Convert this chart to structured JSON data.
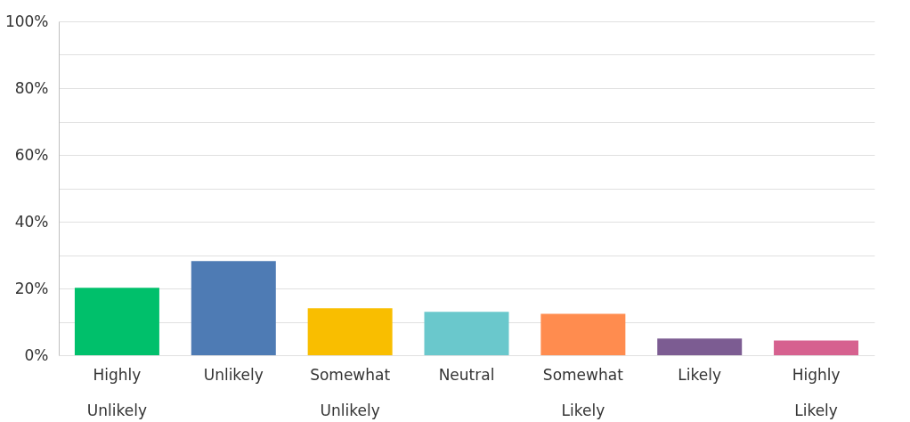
{
  "chart_data": {
    "type": "bar",
    "categories": [
      "Highly Unlikely",
      "Unlikely",
      "Somewhat Unlikely",
      "Neutral",
      "Somewhat Likely",
      "Likely",
      "Highly Likely"
    ],
    "values": [
      20.2,
      28.2,
      14.1,
      13,
      12.4,
      5,
      4.4
    ],
    "colors": [
      "#00c06b",
      "#4e7bb4",
      "#f9be00",
      "#6ac8cc",
      "#ff8c4f",
      "#7c5c92",
      "#d6618f"
    ],
    "ylim": [
      0,
      100
    ],
    "yticks": [
      {
        "value": 0,
        "label": "0%"
      },
      {
        "value": 10,
        "label": null
      },
      {
        "value": 20,
        "label": "20%"
      },
      {
        "value": 30,
        "label": null
      },
      {
        "value": 40,
        "label": "40%"
      },
      {
        "value": 50,
        "label": null
      },
      {
        "value": 60,
        "label": "60%"
      },
      {
        "value": 70,
        "label": null
      },
      {
        "value": 80,
        "label": "80%"
      },
      {
        "value": 90,
        "label": null
      },
      {
        "value": 100,
        "label": "100%"
      }
    ],
    "grid": "y"
  }
}
